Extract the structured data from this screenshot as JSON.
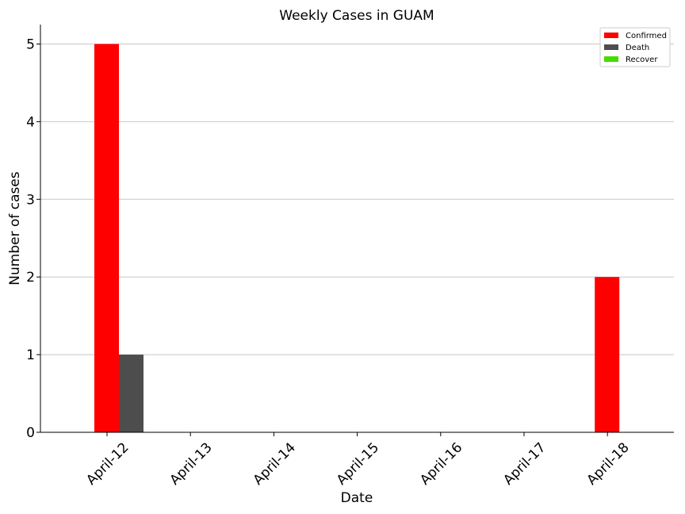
{
  "chart_data": {
    "type": "bar",
    "title": "Weekly Cases in GUAM",
    "xlabel": "Date",
    "ylabel": "Number of cases",
    "categories": [
      "April-12",
      "April-13",
      "April-14",
      "April-15",
      "April-16",
      "April-17",
      "April-18"
    ],
    "series": [
      {
        "name": "Confirmed",
        "color": "#ff0000",
        "values": [
          5,
          0,
          0,
          0,
          0,
          0,
          2
        ]
      },
      {
        "name": "Death",
        "color": "#4d4d4d",
        "values": [
          1,
          0,
          0,
          0,
          0,
          0,
          0
        ]
      },
      {
        "name": "Recover",
        "color": "#44dd00",
        "values": [
          0,
          0,
          0,
          0,
          0,
          0,
          0
        ]
      }
    ],
    "ylim": [
      0,
      5.25
    ],
    "yticks": [
      0,
      1,
      2,
      3,
      4,
      5
    ],
    "grid": "horizontal",
    "legend_position": "top-right"
  }
}
